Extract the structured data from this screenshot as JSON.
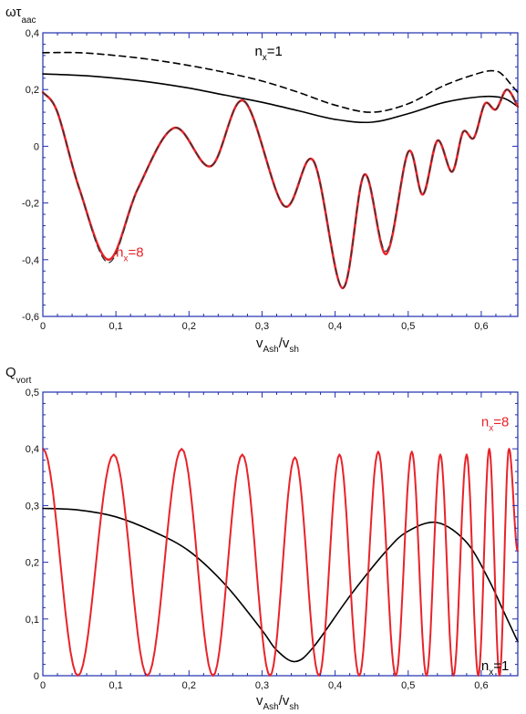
{
  "chart_data": [
    {
      "type": "line",
      "ylabel": "ωτ",
      "ylabel_sub": "aac",
      "xlabel": "v",
      "xlabel_sub1": "Ash",
      "xlabel_mid": "/v",
      "xlabel_sub2": "sh",
      "xlim": [
        0,
        0.65
      ],
      "ylim": [
        -0.6,
        0.4
      ],
      "x_ticks": [
        0,
        0.1,
        0.2,
        0.3,
        0.4,
        0.5,
        0.6
      ],
      "x_tick_labels": [
        "0",
        "0,1",
        "0,2",
        "0,3",
        "0,4",
        "0,5",
        "0,6"
      ],
      "y_ticks": [
        -0.6,
        -0.4,
        -0.2,
        0,
        0.2,
        0.4
      ],
      "y_tick_labels": [
        "-0,6",
        "-0,4",
        "-0,2",
        "0",
        "0,2",
        "0,4"
      ],
      "grid": false,
      "annotations": [
        {
          "text": "n",
          "sub": "x",
          "rest": "=1",
          "color": "#000000",
          "x": 0.29,
          "y": 0.32
        },
        {
          "text": "n",
          "sub": "x",
          "rest": "=8",
          "color": "#e8232a",
          "x": 0.1,
          "y": -0.39
        }
      ],
      "series": [
        {
          "style": "dashed",
          "color": "#000000",
          "x": [
            0,
            0.05,
            0.1,
            0.15,
            0.2,
            0.25,
            0.3,
            0.35,
            0.4,
            0.45,
            0.5,
            0.55,
            0.6,
            0.62,
            0.63,
            0.64,
            0.65
          ],
          "y": [
            0.33,
            0.33,
            0.32,
            0.305,
            0.285,
            0.26,
            0.23,
            0.19,
            0.145,
            0.12,
            0.15,
            0.215,
            0.26,
            0.265,
            0.25,
            0.22,
            0.19
          ]
        },
        {
          "style": "solid",
          "color": "#000000",
          "x": [
            0,
            0.05,
            0.1,
            0.15,
            0.2,
            0.25,
            0.3,
            0.35,
            0.4,
            0.45,
            0.5,
            0.55,
            0.6,
            0.63,
            0.65
          ],
          "y": [
            0.255,
            0.25,
            0.24,
            0.225,
            0.205,
            0.18,
            0.155,
            0.125,
            0.095,
            0.085,
            0.115,
            0.155,
            0.175,
            0.17,
            0.14
          ]
        },
        {
          "style": "solid",
          "color": "#e8232a",
          "width": 2.5,
          "x": [
            0,
            0.02,
            0.05,
            0.09,
            0.13,
            0.18,
            0.23,
            0.275,
            0.33,
            0.37,
            0.41,
            0.44,
            0.47,
            0.5,
            0.52,
            0.54,
            0.56,
            0.575,
            0.59,
            0.605,
            0.62,
            0.635,
            0.65
          ],
          "y": [
            0.19,
            0.12,
            -0.15,
            -0.4,
            -0.15,
            0.065,
            -0.07,
            0.16,
            -0.21,
            -0.05,
            -0.5,
            -0.1,
            -0.38,
            -0.02,
            -0.17,
            0.02,
            -0.09,
            0.05,
            0.03,
            0.15,
            0.13,
            0.2,
            0.14
          ]
        },
        {
          "style": "dashed",
          "color": "#333333",
          "width": 1.3,
          "x": [
            0,
            0.02,
            0.05,
            0.09,
            0.13,
            0.18,
            0.23,
            0.275,
            0.33,
            0.37,
            0.41,
            0.44,
            0.47,
            0.5,
            0.52,
            0.54,
            0.56,
            0.575,
            0.59,
            0.605,
            0.62,
            0.635,
            0.65
          ],
          "y": [
            0.19,
            0.12,
            -0.15,
            -0.41,
            -0.15,
            0.065,
            -0.07,
            0.16,
            -0.21,
            -0.05,
            -0.5,
            -0.1,
            -0.37,
            -0.02,
            -0.17,
            0.02,
            -0.09,
            0.05,
            0.03,
            0.15,
            0.13,
            0.2,
            0.14
          ]
        }
      ]
    },
    {
      "type": "line",
      "ylabel": "Q",
      "ylabel_sub": "vort",
      "xlabel": "v",
      "xlabel_sub1": "Ash",
      "xlabel_mid": "/v",
      "xlabel_sub2": "sh",
      "xlim": [
        0,
        0.65
      ],
      "ylim": [
        0,
        0.5
      ],
      "x_ticks": [
        0,
        0.1,
        0.2,
        0.3,
        0.4,
        0.5,
        0.6
      ],
      "x_tick_labels": [
        "0",
        "0,1",
        "0,2",
        "0,3",
        "0,4",
        "0,5",
        "0,6"
      ],
      "y_ticks": [
        0,
        0.1,
        0.2,
        0.3,
        0.4,
        0.5
      ],
      "y_tick_labels": [
        "0",
        "0,1",
        "0,2",
        "0,3",
        "0,4",
        "0,5"
      ],
      "grid": false,
      "annotations": [
        {
          "text": "n",
          "sub": "x",
          "rest": "=8",
          "color": "#e8232a",
          "x": 0.6,
          "y": 0.44
        },
        {
          "text": "n",
          "sub": "x",
          "rest": "=1",
          "color": "#000000",
          "x": 0.6,
          "y": 0.01
        }
      ],
      "series": [
        {
          "style": "solid",
          "color": "#000000",
          "x": [
            0,
            0.05,
            0.1,
            0.15,
            0.2,
            0.25,
            0.3,
            0.32,
            0.345,
            0.37,
            0.42,
            0.47,
            0.5,
            0.54,
            0.58,
            0.61,
            0.63,
            0.65
          ],
          "y": [
            0.295,
            0.292,
            0.28,
            0.255,
            0.22,
            0.16,
            0.08,
            0.045,
            0.025,
            0.05,
            0.14,
            0.22,
            0.255,
            0.27,
            0.235,
            0.17,
            0.115,
            0.06
          ]
        },
        {
          "style": "solid",
          "color": "#e8232a",
          "width": 2,
          "minima_x": [
            0.048,
            0.143,
            0.233,
            0.311,
            0.378,
            0.433,
            0.483,
            0.525,
            0.562,
            0.596,
            0.625
          ],
          "maxima_x": [
            0,
            0.097,
            0.19,
            0.273,
            0.345,
            0.406,
            0.459,
            0.505,
            0.544,
            0.58,
            0.611,
            0.638
          ],
          "maxima_y": [
            0.4,
            0.39,
            0.4,
            0.39,
            0.385,
            0.39,
            0.395,
            0.395,
            0.39,
            0.39,
            0.4,
            0.4
          ],
          "x_end": 0.65,
          "y_end": 0.22
        }
      ]
    }
  ]
}
